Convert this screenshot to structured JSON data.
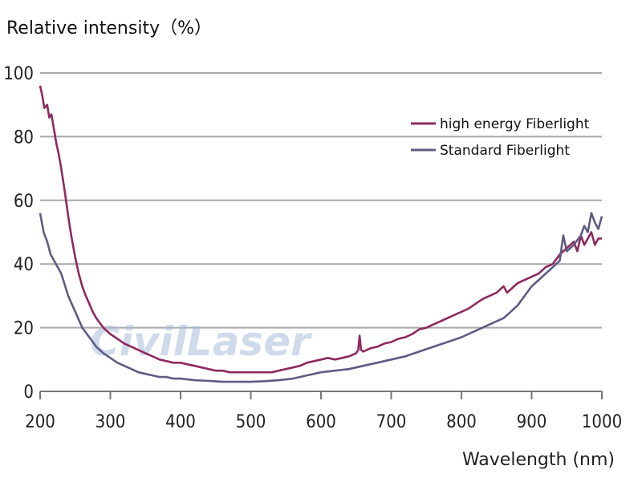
{
  "chart_data": {
    "type": "line",
    "title": "",
    "ylabel": "Relative intensity（%）",
    "xlabel": "Wavelength (nm)",
    "xlim": [
      200,
      1000
    ],
    "ylim": [
      0,
      100
    ],
    "x_ticks": [
      200,
      300,
      400,
      500,
      600,
      700,
      800,
      900,
      1000
    ],
    "y_ticks": [
      0,
      20,
      40,
      60,
      80,
      100
    ],
    "grid": "horizontal",
    "legend_position": "top-right",
    "watermark": "CivilLaser",
    "series": [
      {
        "name": "high energy Fiberlight",
        "color": "#8e2a5e",
        "x": [
          200,
          203,
          206,
          210,
          213,
          216,
          220,
          223,
          226,
          230,
          235,
          240,
          245,
          250,
          255,
          260,
          265,
          270,
          275,
          280,
          290,
          300,
          310,
          320,
          330,
          340,
          350,
          360,
          370,
          380,
          390,
          400,
          410,
          420,
          430,
          440,
          450,
          460,
          470,
          480,
          490,
          500,
          510,
          520,
          530,
          540,
          550,
          560,
          570,
          580,
          590,
          600,
          610,
          620,
          630,
          640,
          650,
          653,
          655,
          657,
          660,
          670,
          680,
          690,
          700,
          710,
          720,
          730,
          740,
          750,
          760,
          770,
          780,
          790,
          800,
          810,
          820,
          830,
          840,
          850,
          860,
          865,
          870,
          875,
          880,
          890,
          900,
          910,
          920,
          930,
          940,
          950,
          960,
          965,
          970,
          975,
          980,
          985,
          990,
          995,
          1000
        ],
        "y": [
          96,
          93,
          89,
          90,
          86,
          87,
          82,
          78,
          75,
          70,
          63,
          55,
          48,
          42,
          37,
          33,
          30,
          27.5,
          25,
          23,
          20,
          18,
          16.5,
          15,
          14,
          13,
          12,
          11,
          10,
          9.5,
          9,
          9,
          8.5,
          8,
          7.5,
          7,
          6.5,
          6.5,
          6,
          6,
          6,
          6,
          6,
          6,
          6,
          6.5,
          7,
          7.5,
          8,
          9,
          9.5,
          10,
          10.5,
          10,
          10.5,
          11,
          12,
          13,
          17.5,
          13,
          12.5,
          13.5,
          14,
          15,
          15.5,
          16.5,
          17,
          18,
          19.5,
          20,
          21,
          22,
          23,
          24,
          25,
          26,
          27.5,
          29,
          30,
          31,
          33,
          31,
          32,
          33,
          34,
          35,
          36,
          37,
          39,
          40,
          43,
          45,
          47,
          44,
          49,
          46,
          48,
          50,
          46,
          48,
          48
        ]
      },
      {
        "name": "Standard Fiberlight",
        "color": "#5e5c84",
        "x": [
          200,
          205,
          210,
          215,
          220,
          230,
          240,
          250,
          260,
          270,
          280,
          290,
          300,
          310,
          320,
          330,
          340,
          350,
          360,
          370,
          380,
          390,
          400,
          420,
          440,
          460,
          480,
          500,
          520,
          540,
          560,
          580,
          600,
          620,
          640,
          660,
          680,
          700,
          720,
          740,
          760,
          780,
          800,
          820,
          840,
          860,
          870,
          880,
          890,
          900,
          910,
          920,
          930,
          940,
          945,
          950,
          960,
          970,
          975,
          980,
          985,
          990,
          995,
          1000
        ],
        "y": [
          56,
          50,
          47,
          43,
          41,
          37,
          30,
          25,
          20,
          17,
          14,
          12,
          10.5,
          9,
          8,
          7,
          6,
          5.5,
          5,
          4.5,
          4.5,
          4,
          4,
          3.5,
          3.3,
          3,
          3,
          3,
          3.2,
          3.5,
          4,
          5,
          6,
          6.5,
          7,
          8,
          9,
          10,
          11,
          12.5,
          14,
          15.5,
          17,
          19,
          21,
          23,
          25,
          27,
          30,
          33,
          35,
          37,
          39,
          41,
          49,
          44,
          46,
          49,
          52,
          50,
          56,
          53,
          51,
          55
        ]
      }
    ]
  }
}
